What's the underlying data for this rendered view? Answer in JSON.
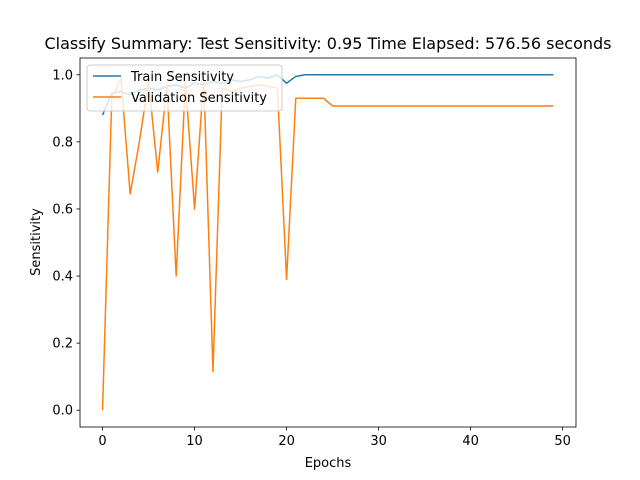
{
  "chart_data": {
    "type": "line",
    "title": "Classify Summary: Test Sensitivity: 0.95 Time Elapsed: 576.56 seconds",
    "xlabel": "Epochs",
    "ylabel": "Sensitivity",
    "xlim": [
      -2.45,
      51.45
    ],
    "ylim": [
      -0.05,
      1.05
    ],
    "xticks": [
      0,
      10,
      20,
      30,
      40,
      50
    ],
    "yticks": [
      0.0,
      0.2,
      0.4,
      0.6,
      0.8,
      1.0
    ],
    "xtick_labels": [
      "0",
      "10",
      "20",
      "30",
      "40",
      "50"
    ],
    "ytick_labels": [
      "0.0",
      "0.2",
      "0.4",
      "0.6",
      "0.8",
      "1.0"
    ],
    "grid": false,
    "legend_position": "upper-left",
    "x": [
      0,
      1,
      2,
      3,
      4,
      5,
      6,
      7,
      8,
      9,
      10,
      11,
      12,
      13,
      14,
      15,
      16,
      17,
      18,
      19,
      20,
      21,
      22,
      23,
      24,
      25,
      26,
      27,
      28,
      29,
      30,
      31,
      32,
      33,
      34,
      35,
      36,
      37,
      38,
      39,
      40,
      41,
      42,
      43,
      44,
      45,
      46,
      47,
      48,
      49
    ],
    "series": [
      {
        "name": "Train Sensitivity",
        "color": "#1f77b4",
        "values": [
          0.88,
          0.945,
          0.95,
          0.94,
          0.955,
          0.96,
          0.955,
          0.965,
          0.97,
          0.96,
          0.975,
          0.97,
          0.98,
          0.975,
          0.985,
          0.98,
          0.985,
          0.995,
          0.99,
          1.0,
          0.975,
          0.995,
          1.0,
          1.0,
          1.0,
          1.0,
          1.0,
          1.0,
          1.0,
          1.0,
          1.0,
          1.0,
          1.0,
          1.0,
          1.0,
          1.0,
          1.0,
          1.0,
          1.0,
          1.0,
          1.0,
          1.0,
          1.0,
          1.0,
          1.0,
          1.0,
          1.0,
          1.0,
          1.0,
          1.0
        ]
      },
      {
        "name": "Validation Sensitivity",
        "color": "#ff7f0e",
        "values": [
          0.0,
          0.93,
          0.99,
          0.645,
          0.8,
          0.98,
          0.71,
          0.97,
          0.4,
          0.98,
          0.6,
          0.99,
          0.115,
          0.96,
          0.95,
          0.96,
          0.965,
          0.97,
          0.965,
          0.96,
          0.39,
          0.93,
          0.93,
          0.93,
          0.93,
          0.907,
          0.907,
          0.907,
          0.907,
          0.907,
          0.907,
          0.907,
          0.907,
          0.907,
          0.907,
          0.907,
          0.907,
          0.907,
          0.907,
          0.907,
          0.907,
          0.907,
          0.907,
          0.907,
          0.907,
          0.907,
          0.907,
          0.907,
          0.907,
          0.907
        ]
      }
    ]
  }
}
